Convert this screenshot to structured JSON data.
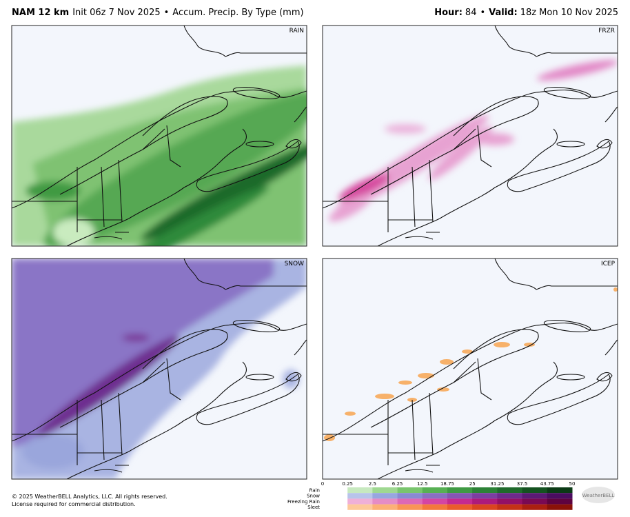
{
  "header": {
    "model": "NAM 12 km",
    "init": "Init 06z 7 Nov 2025",
    "separator": "•",
    "product": "Accum. Precip. By Type (mm)",
    "hour_label": "Hour:",
    "hour": 84,
    "valid_label": "Valid:",
    "valid": "18z Mon 10 Nov 2025"
  },
  "panels": [
    {
      "label": "RAIN"
    },
    {
      "label": "FRZR"
    },
    {
      "label": "SNOW"
    },
    {
      "label": "ICEP"
    }
  ],
  "legend": {
    "ticks": [
      0,
      0.25,
      2.5,
      6.25,
      12.5,
      18.75,
      25,
      31.25,
      37.5,
      43.75,
      50
    ],
    "rows": [
      {
        "name": "Rain",
        "colors": [
          "#c7e9bf",
          "#9fd891",
          "#79c56d",
          "#57b053",
          "#3f9a43",
          "#2c8236",
          "#1f6a2b",
          "#145220",
          "#0b3a15"
        ]
      },
      {
        "name": "Snow",
        "colors": [
          "#b8c4ea",
          "#98a6df",
          "#8a8ad2",
          "#8a6fc2",
          "#8656b3",
          "#7c3ea1",
          "#6e2a8c",
          "#5b1a75",
          "#4a0d60"
        ]
      },
      {
        "name": "Freezing Rain",
        "colors": [
          "#efb0d8",
          "#e58cc6",
          "#dd68b5",
          "#d445a3",
          "#c52a90",
          "#ad1a7b",
          "#931066",
          "#790953",
          "#5e0340"
        ]
      },
      {
        "name": "Sleet",
        "colors": [
          "#fdc99a",
          "#fcb077",
          "#f99456",
          "#f3783c",
          "#ea5c2c",
          "#da4520",
          "#c43217",
          "#aa2010",
          "#8a1208"
        ]
      }
    ]
  },
  "footer": {
    "copyright": "© 2025 WeatherBELL Analytics, LLC. All rights reserved.",
    "license": "License required for commercial distribution.",
    "logo": "WeatherBELL"
  }
}
